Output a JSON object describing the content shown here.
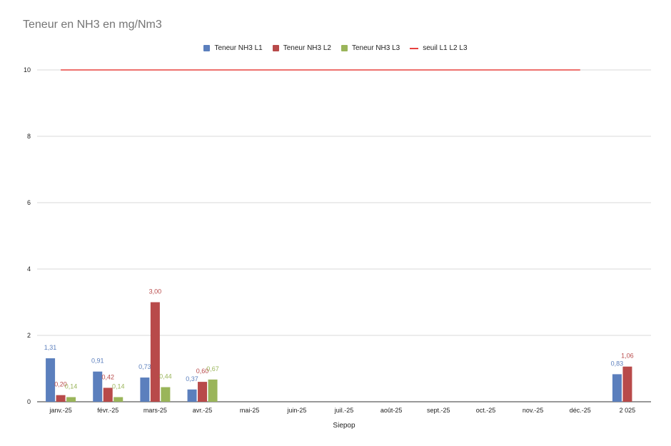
{
  "chart_data": {
    "type": "bar",
    "title": "Teneur en NH3 en mg/Nm3",
    "xlabel": "Siepop",
    "ylabel": "",
    "ylim": [
      0,
      10
    ],
    "yticks": [
      "0",
      "2",
      "4",
      "6",
      "8",
      "10"
    ],
    "grid": true,
    "legend_position": "top",
    "categories": [
      "janv.-25",
      "févr.-25",
      "mars-25",
      "avr.-25",
      "mai-25",
      "juin-25",
      "juil.-25",
      "août-25",
      "sept.-25",
      "oct.-25",
      "nov.-25",
      "déc.-25",
      "2 025"
    ],
    "series": [
      {
        "name": "Teneur NH3 L1",
        "color": "#5b7fbd",
        "values": [
          1.31,
          0.91,
          0.73,
          0.37,
          null,
          null,
          null,
          null,
          null,
          null,
          null,
          null,
          0.83
        ],
        "labels": [
          "1,31",
          "0,91",
          "0,73",
          "0,37",
          "",
          "",
          "",
          "",
          "",
          "",
          "",
          "",
          "0,83"
        ]
      },
      {
        "name": "Teneur NH3 L2",
        "color": "#b84a4a",
        "values": [
          0.2,
          0.42,
          3.0,
          0.6,
          null,
          null,
          null,
          null,
          null,
          null,
          null,
          null,
          1.06
        ],
        "labels": [
          "0,20",
          "0,42",
          "3,00",
          "0,60",
          "",
          "",
          "",
          "",
          "",
          "",
          "",
          "",
          "1,06"
        ]
      },
      {
        "name": "Teneur NH3 L3",
        "color": "#9ab55a",
        "values": [
          0.14,
          0.14,
          0.44,
          0.67,
          null,
          null,
          null,
          null,
          null,
          null,
          null,
          null,
          null
        ],
        "labels": [
          "0,14",
          "0,14",
          "0,44",
          "0,67",
          "",
          "",
          "",
          "",
          "",
          "",
          "",
          "",
          ""
        ]
      }
    ],
    "threshold": {
      "name": "seuil L1 L2 L3",
      "color": "#e8423f",
      "value": 10
    }
  }
}
